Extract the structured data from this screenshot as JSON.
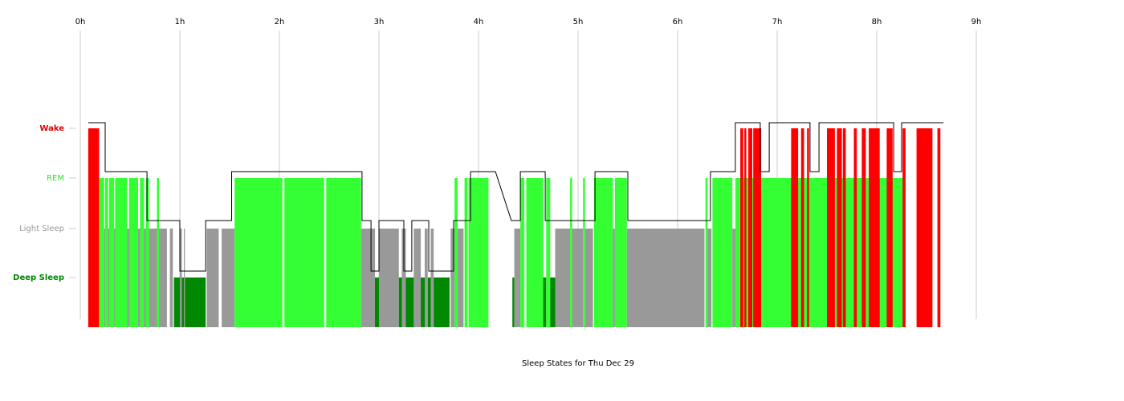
{
  "chart_data": {
    "type": "area",
    "title": "Sleep States for Thu Dec 29",
    "x_unit": "hours",
    "xlim": [
      0,
      9
    ],
    "x_ticks": [
      "0h",
      "1h",
      "2h",
      "3h",
      "4h",
      "5h",
      "6h",
      "7h",
      "8h",
      "9h"
    ],
    "y_categories": [
      "Deep Sleep",
      "Light Sleep",
      "REM",
      "Wake"
    ],
    "grid": true,
    "colors": {
      "Wake": "#ff0000",
      "REM": "#33ff33",
      "Light Sleep": "#999999",
      "Deep Sleep": "#008800",
      "hypnogram": "#000000",
      "grid": "#cccccc",
      "Wake_label": "#e00000",
      "REM_label": "#33dd33",
      "Light Sleep_label": "#999999",
      "Deep Sleep_label": "#008800"
    },
    "segments": [
      {
        "state": "Wake",
        "start": 0.08,
        "end": 0.19
      },
      {
        "state": "REM",
        "start": 0.19,
        "end": 0.24
      },
      {
        "state": "Light Sleep",
        "start": 0.24,
        "end": 0.87
      },
      {
        "state": "REM",
        "start": 0.25,
        "end": 0.28
      },
      {
        "state": "REM",
        "start": 0.29,
        "end": 0.34
      },
      {
        "state": "REM",
        "start": 0.35,
        "end": 0.47
      },
      {
        "state": "REM",
        "start": 0.49,
        "end": 0.58
      },
      {
        "state": "REM",
        "start": 0.6,
        "end": 0.64
      },
      {
        "state": "REM",
        "start": 0.66,
        "end": 0.69
      },
      {
        "state": "REM",
        "start": 0.77,
        "end": 0.79
      },
      {
        "state": "Light Sleep",
        "start": 0.9,
        "end": 0.93
      },
      {
        "state": "Deep Sleep",
        "start": 0.94,
        "end": 1.0
      },
      {
        "state": "Light Sleep",
        "start": 1.0,
        "end": 1.02
      },
      {
        "state": "Deep Sleep",
        "start": 1.02,
        "end": 1.04
      },
      {
        "state": "Light Sleep",
        "start": 1.04,
        "end": 1.05
      },
      {
        "state": "Deep Sleep",
        "start": 1.05,
        "end": 1.26
      },
      {
        "state": "Light Sleep",
        "start": 1.27,
        "end": 1.39
      },
      {
        "state": "Light Sleep",
        "start": 1.42,
        "end": 1.55
      },
      {
        "state": "REM",
        "start": 1.55,
        "end": 2.03
      },
      {
        "state": "REM",
        "start": 2.05,
        "end": 2.45
      },
      {
        "state": "REM",
        "start": 2.47,
        "end": 2.82
      },
      {
        "state": "Light Sleep",
        "start": 2.82,
        "end": 2.96
      },
      {
        "state": "Deep Sleep",
        "start": 2.96,
        "end": 3.0
      },
      {
        "state": "Light Sleep",
        "start": 3.0,
        "end": 3.2
      },
      {
        "state": "Deep Sleep",
        "start": 3.2,
        "end": 3.23
      },
      {
        "state": "Light Sleep",
        "start": 3.23,
        "end": 3.27
      },
      {
        "state": "Deep Sleep",
        "start": 3.27,
        "end": 3.35
      },
      {
        "state": "Light Sleep",
        "start": 3.35,
        "end": 3.42
      },
      {
        "state": "Deep Sleep",
        "start": 3.42,
        "end": 3.46
      },
      {
        "state": "Light Sleep",
        "start": 3.46,
        "end": 3.49
      },
      {
        "state": "Deep Sleep",
        "start": 3.49,
        "end": 3.52
      },
      {
        "state": "Light Sleep",
        "start": 3.52,
        "end": 3.55
      },
      {
        "state": "Deep Sleep",
        "start": 3.55,
        "end": 3.71
      },
      {
        "state": "Light Sleep",
        "start": 3.72,
        "end": 3.76
      },
      {
        "state": "REM",
        "start": 3.76,
        "end": 3.79
      },
      {
        "state": "Light Sleep",
        "start": 3.79,
        "end": 3.85
      },
      {
        "state": "REM",
        "start": 3.86,
        "end": 3.89
      },
      {
        "state": "REM",
        "start": 3.9,
        "end": 4.1
      },
      {
        "state": "Deep Sleep",
        "start": 4.34,
        "end": 4.36
      },
      {
        "state": "Light Sleep",
        "start": 4.36,
        "end": 4.42
      },
      {
        "state": "REM",
        "start": 4.42,
        "end": 4.46
      },
      {
        "state": "REM",
        "start": 4.48,
        "end": 4.65
      },
      {
        "state": "Deep Sleep",
        "start": 4.65,
        "end": 4.68
      },
      {
        "state": "REM",
        "start": 4.68,
        "end": 4.72
      },
      {
        "state": "Deep Sleep",
        "start": 4.72,
        "end": 4.77
      },
      {
        "state": "Light Sleep",
        "start": 4.77,
        "end": 4.92
      },
      {
        "state": "REM",
        "start": 4.92,
        "end": 4.94
      },
      {
        "state": "Light Sleep",
        "start": 4.94,
        "end": 5.05
      },
      {
        "state": "REM",
        "start": 5.05,
        "end": 5.07
      },
      {
        "state": "Light Sleep",
        "start": 5.07,
        "end": 5.15
      },
      {
        "state": "REM",
        "start": 5.16,
        "end": 5.35
      },
      {
        "state": "Light Sleep",
        "start": 5.35,
        "end": 5.37
      },
      {
        "state": "REM",
        "start": 5.37,
        "end": 5.49
      },
      {
        "state": "Light Sleep",
        "start": 5.49,
        "end": 6.27
      },
      {
        "state": "REM",
        "start": 6.28,
        "end": 6.3
      },
      {
        "state": "Light Sleep",
        "start": 6.3,
        "end": 6.34
      },
      {
        "state": "REM",
        "start": 6.35,
        "end": 6.55
      },
      {
        "state": "Light Sleep",
        "start": 6.55,
        "end": 6.58
      },
      {
        "state": "REM",
        "start": 6.58,
        "end": 8.28
      },
      {
        "state": "Wake",
        "start": 6.63,
        "end": 6.66
      },
      {
        "state": "Wake",
        "start": 6.67,
        "end": 6.69
      },
      {
        "state": "Wake",
        "start": 6.71,
        "end": 6.75
      },
      {
        "state": "Wake",
        "start": 6.76,
        "end": 6.84
      },
      {
        "state": "Wake",
        "start": 7.14,
        "end": 7.21
      },
      {
        "state": "Wake",
        "start": 7.24,
        "end": 7.27
      },
      {
        "state": "Wake",
        "start": 7.3,
        "end": 7.32
      },
      {
        "state": "Wake",
        "start": 7.5,
        "end": 7.58
      },
      {
        "state": "Wake",
        "start": 7.6,
        "end": 7.65
      },
      {
        "state": "Wake",
        "start": 7.66,
        "end": 7.69
      },
      {
        "state": "Wake",
        "start": 7.77,
        "end": 7.8
      },
      {
        "state": "Wake",
        "start": 7.85,
        "end": 7.89
      },
      {
        "state": "Wake",
        "start": 7.92,
        "end": 8.03
      },
      {
        "state": "Wake",
        "start": 8.1,
        "end": 8.16
      },
      {
        "state": "Wake",
        "start": 8.26,
        "end": 8.29
      },
      {
        "state": "Wake",
        "start": 8.4,
        "end": 8.56
      },
      {
        "state": "Wake",
        "start": 8.61,
        "end": 8.64
      }
    ],
    "hypnogram": [
      [
        0.08,
        "Wake"
      ],
      [
        0.25,
        "Wake"
      ],
      [
        0.25,
        "REM"
      ],
      [
        0.67,
        "REM"
      ],
      [
        0.67,
        "Light Sleep"
      ],
      [
        1.0,
        "Light Sleep"
      ],
      [
        1.0,
        "Deep Sleep"
      ],
      [
        1.26,
        "Deep Sleep"
      ],
      [
        1.26,
        "Light Sleep"
      ],
      [
        1.52,
        "Light Sleep"
      ],
      [
        1.52,
        "REM"
      ],
      [
        2.83,
        "REM"
      ],
      [
        2.83,
        "Light Sleep"
      ],
      [
        2.92,
        "Light Sleep"
      ],
      [
        2.92,
        "Deep Sleep"
      ],
      [
        3.0,
        "Deep Sleep"
      ],
      [
        3.0,
        "Light Sleep"
      ],
      [
        3.25,
        "Light Sleep"
      ],
      [
        3.25,
        "Deep Sleep"
      ],
      [
        3.33,
        "Deep Sleep"
      ],
      [
        3.33,
        "Light Sleep"
      ],
      [
        3.5,
        "Light Sleep"
      ],
      [
        3.5,
        "Deep Sleep"
      ],
      [
        3.75,
        "Deep Sleep"
      ],
      [
        3.75,
        "Light Sleep"
      ],
      [
        3.92,
        "Light Sleep"
      ],
      [
        3.92,
        "REM"
      ],
      [
        4.17,
        "REM"
      ],
      [
        4.33,
        "Light Sleep"
      ],
      [
        4.42,
        "Light Sleep"
      ],
      [
        4.42,
        "REM"
      ],
      [
        4.67,
        "REM"
      ],
      [
        4.67,
        "Light Sleep"
      ],
      [
        5.17,
        "Light Sleep"
      ],
      [
        5.17,
        "REM"
      ],
      [
        5.5,
        "REM"
      ],
      [
        5.5,
        "Light Sleep"
      ],
      [
        6.33,
        "Light Sleep"
      ],
      [
        6.33,
        "REM"
      ],
      [
        6.58,
        "REM"
      ],
      [
        6.58,
        "Wake"
      ],
      [
        6.83,
        "Wake"
      ],
      [
        6.83,
        "REM"
      ],
      [
        6.92,
        "REM"
      ],
      [
        6.92,
        "Wake"
      ],
      [
        7.33,
        "Wake"
      ],
      [
        7.33,
        "REM"
      ],
      [
        7.42,
        "REM"
      ],
      [
        7.42,
        "Wake"
      ],
      [
        8.17,
        "Wake"
      ],
      [
        8.17,
        "REM"
      ],
      [
        8.25,
        "REM"
      ],
      [
        8.25,
        "Wake"
      ],
      [
        8.67,
        "Wake"
      ]
    ]
  }
}
